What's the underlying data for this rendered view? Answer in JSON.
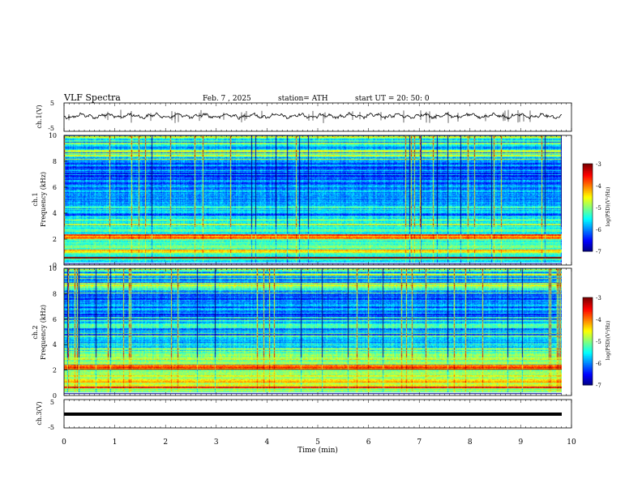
{
  "header": {
    "title": "VLF  Spectra",
    "date": "Feb. 7  , 2025",
    "station": "station= ATH",
    "start": "start  UT  =    20: 50: 0"
  },
  "chart_data": [
    {
      "id": "ch1-waveform",
      "type": "line",
      "ylabel": "ch.1(V)",
      "ylim": [
        -5,
        5
      ],
      "yticks": [
        "5",
        "-5"
      ],
      "xlim": [
        0,
        10
      ]
    },
    {
      "id": "ch1-spectrogram",
      "type": "heatmap",
      "ylabel_line1": "ch.1",
      "ylabel_line2": "Frequency  (kHz)",
      "ylim": [
        0,
        10
      ],
      "yticks": [
        "0",
        "2",
        "4",
        "6",
        "8",
        "10"
      ],
      "xlim": [
        0,
        10
      ],
      "colorbar": {
        "label": "log(PSD)(V²/Hz)",
        "range": [
          -7,
          -3
        ],
        "ticks": [
          "-3",
          "-4",
          "-5",
          "-6",
          "-7"
        ]
      }
    },
    {
      "id": "ch2-spectrogram",
      "type": "heatmap",
      "ylabel_line1": "ch.2",
      "ylabel_line2": "Frequency  (kHz)",
      "ylim": [
        0,
        10
      ],
      "yticks": [
        "0",
        "2",
        "4",
        "6",
        "8",
        "10"
      ],
      "xlim": [
        0,
        10
      ],
      "colorbar": {
        "label": "log(PSD)(V²/Hz)",
        "range": [
          -7,
          -3
        ],
        "ticks": [
          "-3",
          "-4",
          "-5",
          "-6",
          "-7"
        ]
      }
    },
    {
      "id": "ch3-waveform",
      "type": "line",
      "ylabel": "ch.3(V)",
      "ylim": [
        -5,
        5
      ],
      "yticks": [
        "5",
        "-5"
      ],
      "xlim": [
        0,
        10
      ],
      "xlabel": "Time  (min)",
      "xticks": [
        "0",
        "1",
        "2",
        "3",
        "4",
        "5",
        "6",
        "7",
        "8",
        "9",
        "10"
      ]
    }
  ]
}
